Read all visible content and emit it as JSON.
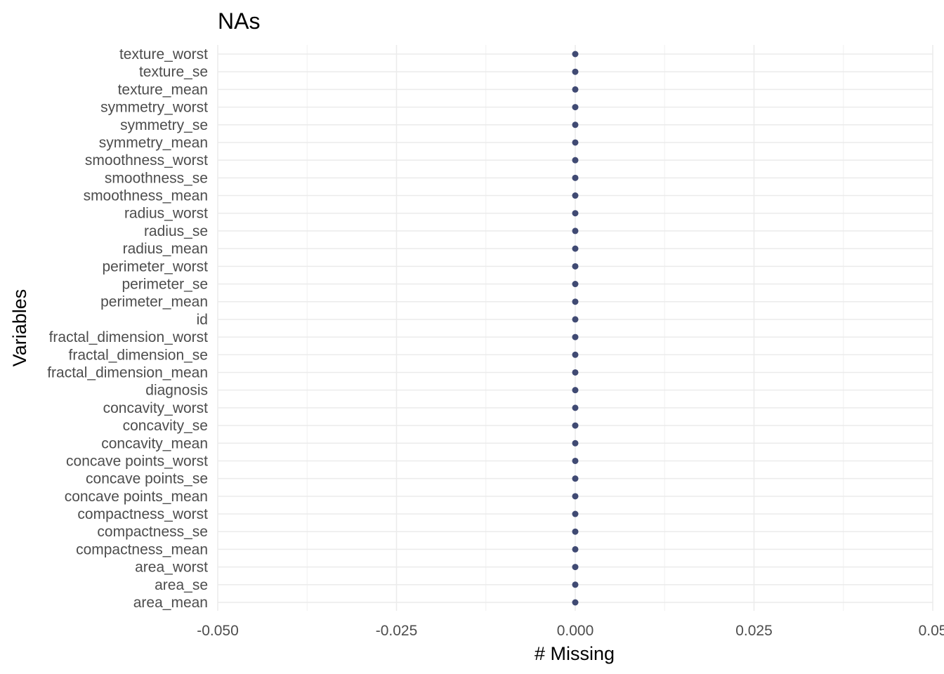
{
  "chart_data": {
    "type": "scatter",
    "title": "NAs",
    "xlabel": "# Missing",
    "ylabel": "Variables",
    "xlim": [
      -0.05,
      0.05
    ],
    "x_ticks": [
      -0.05,
      -0.025,
      0,
      0.025,
      0.05
    ],
    "x_tick_labels": [
      "-0.050",
      "-0.025",
      "0.000",
      "0.025",
      "0.05"
    ],
    "grid": true,
    "point_color": "#404a73",
    "categories": [
      "texture_worst",
      "texture_se",
      "texture_mean",
      "symmetry_worst",
      "symmetry_se",
      "symmetry_mean",
      "smoothness_worst",
      "smoothness_se",
      "smoothness_mean",
      "radius_worst",
      "radius_se",
      "radius_mean",
      "perimeter_worst",
      "perimeter_se",
      "perimeter_mean",
      "id",
      "fractal_dimension_worst",
      "fractal_dimension_se",
      "fractal_dimension_mean",
      "diagnosis",
      "concavity_worst",
      "concavity_se",
      "concavity_mean",
      "concave points_worst",
      "concave points_se",
      "concave points_mean",
      "compactness_worst",
      "compactness_se",
      "compactness_mean",
      "area_worst",
      "area_se",
      "area_mean"
    ],
    "values": [
      0,
      0,
      0,
      0,
      0,
      0,
      0,
      0,
      0,
      0,
      0,
      0,
      0,
      0,
      0,
      0,
      0,
      0,
      0,
      0,
      0,
      0,
      0,
      0,
      0,
      0,
      0,
      0,
      0,
      0,
      0,
      0
    ]
  }
}
